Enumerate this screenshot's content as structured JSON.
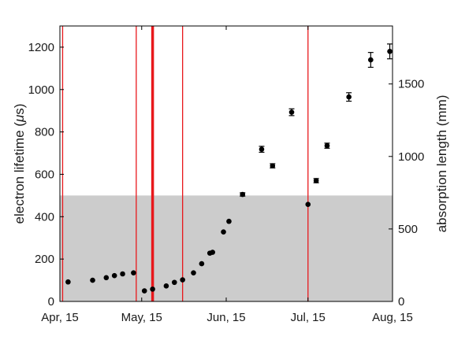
{
  "chart_data": {
    "type": "scatter",
    "x_axis": {
      "type": "date",
      "range": [
        "2015-04-15",
        "2015-08-15"
      ],
      "ticks": [
        {
          "value": "2015-04-15",
          "label": "Apr, 15"
        },
        {
          "value": "2015-05-15",
          "label": "May, 15"
        },
        {
          "value": "2015-06-15",
          "label": "Jun, 15"
        },
        {
          "value": "2015-07-15",
          "label": "Jul, 15"
        },
        {
          "value": "2015-08-15",
          "label": "Aug, 15"
        }
      ]
    },
    "y_left": {
      "label_prefix": "electron lifetime (",
      "label_mu": "μ",
      "label_suffix": "s)",
      "range": [
        0,
        1300
      ],
      "ticks": [
        0,
        200,
        400,
        600,
        800,
        1000,
        1200
      ]
    },
    "y_right": {
      "label": "absorption length (mm)",
      "range": [
        0,
        1900
      ],
      "ticks": [
        0,
        500,
        1000,
        1500
      ]
    },
    "shaded_band": {
      "y_from": 0,
      "y_to": 500,
      "color": "#cccccc"
    },
    "vertical_lines": [
      {
        "date": "2015-04-16",
        "emphasis": "normal"
      },
      {
        "date": "2015-05-13",
        "emphasis": "normal"
      },
      {
        "date": "2015-05-19",
        "emphasis": "heavy"
      },
      {
        "date": "2015-05-30",
        "emphasis": "normal"
      },
      {
        "date": "2015-07-15",
        "emphasis": "normal"
      }
    ],
    "line_color": "#e8181c",
    "marker_color": "#000000",
    "points": [
      {
        "x": "2015-04-18",
        "y": 92
      },
      {
        "x": "2015-04-27",
        "y": 100
      },
      {
        "x": "2015-05-02",
        "y": 112
      },
      {
        "x": "2015-05-05",
        "y": 122
      },
      {
        "x": "2015-05-08",
        "y": 130
      },
      {
        "x": "2015-05-12",
        "y": 135
      },
      {
        "x": "2015-05-16",
        "y": 50
      },
      {
        "x": "2015-05-19",
        "y": 58
      },
      {
        "x": "2015-05-24",
        "y": 73
      },
      {
        "x": "2015-05-27",
        "y": 90
      },
      {
        "x": "2015-05-30",
        "y": 102
      },
      {
        "x": "2015-06-03",
        "y": 135
      },
      {
        "x": "2015-06-06",
        "y": 178
      },
      {
        "x": "2015-06-09",
        "y": 228
      },
      {
        "x": "2015-06-10",
        "y": 232
      },
      {
        "x": "2015-06-14",
        "y": 328
      },
      {
        "x": "2015-06-16",
        "y": 378
      },
      {
        "x": "2015-06-21",
        "y": 505,
        "err": 8
      },
      {
        "x": "2015-06-28",
        "y": 718,
        "err": 14
      },
      {
        "x": "2015-07-02",
        "y": 640,
        "err": 10
      },
      {
        "x": "2015-07-09",
        "y": 893,
        "err": 16
      },
      {
        "x": "2015-07-15",
        "y": 458
      },
      {
        "x": "2015-07-18",
        "y": 570,
        "err": 10
      },
      {
        "x": "2015-07-22",
        "y": 735,
        "err": 12
      },
      {
        "x": "2015-07-30",
        "y": 965,
        "err": 20
      },
      {
        "x": "2015-08-07",
        "y": 1140,
        "err": 35
      },
      {
        "x": "2015-08-14",
        "y": 1180,
        "err": 35
      }
    ]
  }
}
